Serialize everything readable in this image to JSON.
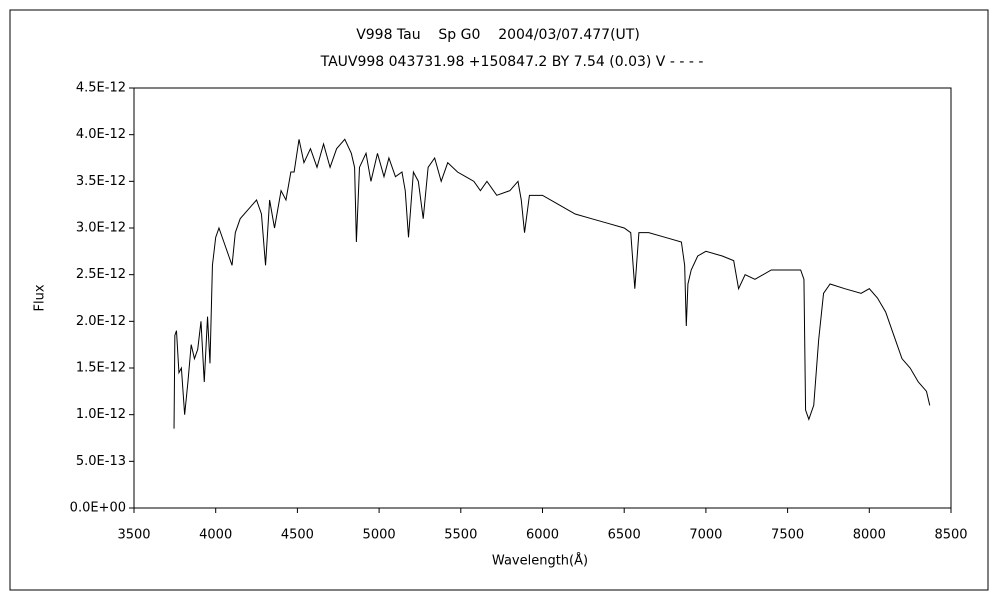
{
  "chart_data": {
    "type": "line",
    "title": "V998 Tau    Sp G0    2004/03/07.477(UT)",
    "subtitle": "TAUV998 043731.98 +150847.2 BY 7.54 (0.03) V - - - -",
    "xlabel": "Wavelength(Å)",
    "ylabel": "Flux",
    "color": "#000000",
    "xlim": [
      3500,
      8500
    ],
    "xticks": [
      3500,
      4000,
      4500,
      5000,
      5500,
      6000,
      6500,
      7000,
      7500,
      8000,
      8500
    ],
    "ylim": [
      0,
      4.5e-12
    ],
    "yticks": [
      {
        "value": 0,
        "label": "0.0E+00"
      },
      {
        "value": 5e-13,
        "label": "5.0E-13"
      },
      {
        "value": 1e-12,
        "label": "1.0E-12"
      },
      {
        "value": 1.5e-12,
        "label": "1.5E-12"
      },
      {
        "value": 2e-12,
        "label": "2.0E-12"
      },
      {
        "value": 2.5e-12,
        "label": "2.5E-12"
      },
      {
        "value": 3e-12,
        "label": "3.0E-12"
      },
      {
        "value": 3.5e-12,
        "label": "3.5E-12"
      },
      {
        "value": 4e-12,
        "label": "4.0E-12"
      },
      {
        "value": 4.5e-12,
        "label": "4.5E-12"
      }
    ],
    "x": [
      3745,
      3750,
      3760,
      3775,
      3790,
      3810,
      3830,
      3850,
      3870,
      3890,
      3910,
      3930,
      3950,
      3965,
      3980,
      4000,
      4020,
      4050,
      4080,
      4100,
      4120,
      4150,
      4200,
      4250,
      4280,
      4305,
      4330,
      4360,
      4400,
      4430,
      4460,
      4480,
      4510,
      4540,
      4580,
      4620,
      4660,
      4700,
      4740,
      4790,
      4830,
      4850,
      4861,
      4880,
      4920,
      4950,
      4990,
      5030,
      5060,
      5100,
      5140,
      5160,
      5180,
      5210,
      5240,
      5270,
      5300,
      5340,
      5380,
      5420,
      5480,
      5530,
      5580,
      5620,
      5660,
      5720,
      5800,
      5850,
      5870,
      5890,
      5920,
      6000,
      6100,
      6200,
      6300,
      6400,
      6500,
      6540,
      6565,
      6590,
      6650,
      6750,
      6850,
      6870,
      6880,
      6890,
      6910,
      6950,
      7000,
      7100,
      7170,
      7200,
      7240,
      7300,
      7400,
      7500,
      7580,
      7600,
      7610,
      7630,
      7660,
      7690,
      7720,
      7760,
      7850,
      7950,
      8000,
      8050,
      8100,
      8150,
      8200,
      8250,
      8300,
      8350,
      8370
    ],
    "values": [
      8.5e-13,
      1.85e-12,
      1.9e-12,
      1.45e-12,
      1.5e-12,
      1e-12,
      1.35e-12,
      1.75e-12,
      1.6e-12,
      1.7e-12,
      2e-12,
      1.35e-12,
      2.05e-12,
      1.55e-12,
      2.6e-12,
      2.9e-12,
      3e-12,
      2.85e-12,
      2.7e-12,
      2.6e-12,
      2.95e-12,
      3.1e-12,
      3.2e-12,
      3.3e-12,
      3.15e-12,
      2.6e-12,
      3.3e-12,
      3e-12,
      3.4e-12,
      3.3e-12,
      3.6e-12,
      3.6e-12,
      3.95e-12,
      3.7e-12,
      3.85e-12,
      3.65e-12,
      3.9e-12,
      3.65e-12,
      3.85e-12,
      3.95e-12,
      3.8e-12,
      3.65e-12,
      2.85e-12,
      3.65e-12,
      3.8e-12,
      3.5e-12,
      3.8e-12,
      3.55e-12,
      3.75e-12,
      3.55e-12,
      3.6e-12,
      3.4e-12,
      2.9e-12,
      3.6e-12,
      3.5e-12,
      3.1e-12,
      3.65e-12,
      3.75e-12,
      3.5e-12,
      3.7e-12,
      3.6e-12,
      3.55e-12,
      3.5e-12,
      3.4e-12,
      3.5e-12,
      3.35e-12,
      3.4e-12,
      3.5e-12,
      3.3e-12,
      2.95e-12,
      3.35e-12,
      3.35e-12,
      3.25e-12,
      3.15e-12,
      3.1e-12,
      3.05e-12,
      3e-12,
      2.95e-12,
      2.35e-12,
      2.95e-12,
      2.95e-12,
      2.9e-12,
      2.85e-12,
      2.6e-12,
      1.95e-12,
      2.4e-12,
      2.55e-12,
      2.7e-12,
      2.75e-12,
      2.7e-12,
      2.65e-12,
      2.35e-12,
      2.5e-12,
      2.45e-12,
      2.55e-12,
      2.55e-12,
      2.55e-12,
      2.45e-12,
      1.05e-12,
      9.5e-13,
      1.1e-12,
      1.8e-12,
      2.3e-12,
      2.4e-12,
      2.35e-12,
      2.3e-12,
      2.35e-12,
      2.25e-12,
      2.1e-12,
      1.85e-12,
      1.6e-12,
      1.5e-12,
      1.35e-12,
      1.25e-12,
      1.1e-12
    ]
  }
}
